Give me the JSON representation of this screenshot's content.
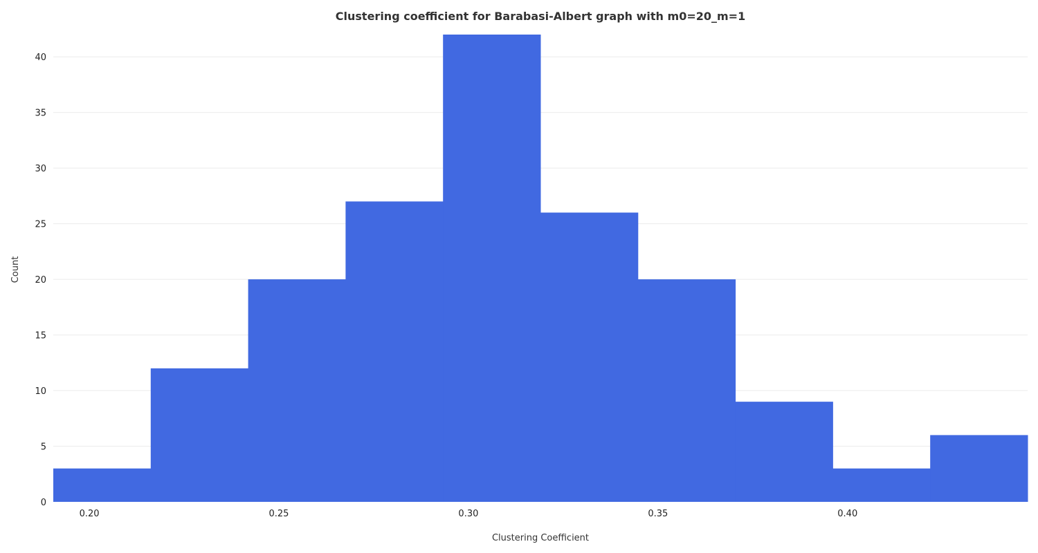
{
  "chart_data": {
    "type": "bar",
    "title": "Clustering coefficient for Barabasi-Albert graph with m0=20_m=1",
    "xlabel": "Clustering Coefficient",
    "ylabel": "Count",
    "bin_edges": [
      0.1905,
      0.2162,
      0.2419,
      0.2676,
      0.2933,
      0.319,
      0.3447,
      0.3704,
      0.3961,
      0.4218,
      0.4475
    ],
    "values": [
      3,
      12,
      20,
      27,
      42,
      26,
      20,
      9,
      3,
      6
    ],
    "xlim": [
      0.1905,
      0.4475
    ],
    "ylim": [
      0,
      42
    ],
    "xticks": [
      0.2,
      0.25,
      0.3,
      0.35,
      0.4
    ],
    "xtick_labels": [
      "0.20",
      "0.25",
      "0.30",
      "0.35",
      "0.40"
    ],
    "yticks": [
      0,
      5,
      10,
      15,
      20,
      25,
      30,
      35,
      40
    ],
    "ytick_labels": [
      "0",
      "5",
      "10",
      "15",
      "20",
      "25",
      "30",
      "35",
      "40"
    ],
    "bar_color": "#4169e1",
    "grid": true,
    "legend": "none"
  }
}
